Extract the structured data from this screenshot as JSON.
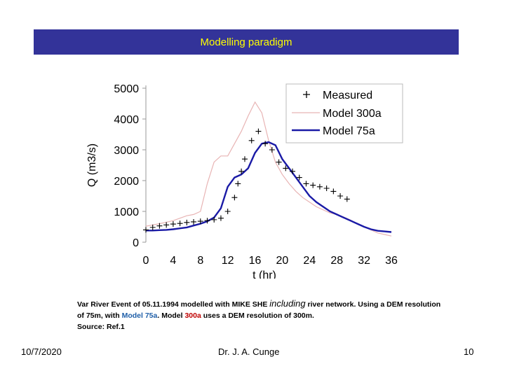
{
  "slide": {
    "title": "Modelling paradigm",
    "caption": {
      "part1": "Var River Event of 05.11.1994 modelled with MIKE SHE ",
      "emphasis": "including",
      "part2": " river network.  Using a DEM resolution of 75m, with ",
      "model_a": "Model 75a",
      "part3": ". Model ",
      "model_b": "300a",
      "part4": " uses a DEM resolution of 300m.",
      "source": "Source: Ref.1"
    },
    "footer": {
      "date": "10/7/2020",
      "author": "Dr. J. A. Cunge",
      "page": "10"
    }
  },
  "colors": {
    "title_bg": "#333399",
    "title_text": "#ffff00",
    "model_a": "#1f5fa8",
    "model_b": "#c00000"
  },
  "chart_data": {
    "type": "line",
    "title": "",
    "xlabel": "t (hr)",
    "ylabel": "Q (m3/s)",
    "xlim": [
      0,
      36
    ],
    "ylim": [
      0,
      5000
    ],
    "xticks": [
      0,
      4,
      8,
      12,
      16,
      20,
      24,
      28,
      32,
      36
    ],
    "yticks": [
      0,
      1000,
      2000,
      3000,
      4000,
      5000
    ],
    "legend_position": "top-right",
    "series": [
      {
        "name": "Measured",
        "style": "markers",
        "color": "#000000",
        "x": [
          0,
          1,
          2,
          3,
          4,
          5,
          6,
          7,
          8,
          9,
          10,
          11,
          12,
          13,
          13.5,
          14,
          14.5,
          15.5,
          16.5,
          17.5,
          18.5,
          19.5,
          20.5,
          21.5,
          22.5,
          23.5,
          24.5,
          25.5,
          26.5,
          27.5,
          28.5,
          29.5
        ],
        "y": [
          400,
          480,
          530,
          560,
          590,
          610,
          640,
          660,
          680,
          700,
          730,
          780,
          1000,
          1450,
          1900,
          2300,
          2700,
          3300,
          3600,
          3200,
          3000,
          2600,
          2400,
          2300,
          2100,
          1900,
          1850,
          1800,
          1750,
          1650,
          1500,
          1400
        ]
      },
      {
        "name": "Model 300a",
        "style": "line",
        "color": "#e8b4b4",
        "x": [
          0,
          1,
          2,
          3,
          4,
          5,
          6,
          7,
          8,
          9,
          10,
          11,
          12,
          13,
          14,
          15,
          16,
          17,
          18,
          19,
          20,
          21,
          22,
          23,
          24,
          25,
          26,
          27,
          28,
          29,
          30,
          31,
          32,
          33,
          34,
          35,
          36
        ],
        "y": [
          520,
          560,
          600,
          650,
          700,
          780,
          860,
          900,
          1000,
          1900,
          2600,
          2800,
          2800,
          3200,
          3600,
          4100,
          4550,
          4200,
          3300,
          2600,
          2200,
          1900,
          1650,
          1450,
          1300,
          1150,
          1050,
          950,
          900,
          820,
          720,
          600,
          500,
          400,
          300,
          250,
          200
        ]
      },
      {
        "name": "Model 75a",
        "style": "line",
        "color": "#1a1aa6",
        "x": [
          0,
          1,
          2,
          3,
          4,
          5,
          6,
          7,
          8,
          9,
          10,
          11,
          12,
          13,
          14,
          15,
          16,
          17,
          18,
          19,
          20,
          21,
          22,
          23,
          24,
          25,
          26,
          27,
          28,
          29,
          30,
          31,
          32,
          33,
          34,
          35,
          36
        ],
        "y": [
          380,
          380,
          390,
          400,
          420,
          450,
          480,
          540,
          600,
          680,
          800,
          1100,
          1800,
          2100,
          2200,
          2400,
          2900,
          3200,
          3250,
          3150,
          2700,
          2400,
          2100,
          1800,
          1500,
          1300,
          1150,
          1000,
          900,
          800,
          700,
          600,
          500,
          420,
          370,
          350,
          330
        ]
      }
    ]
  }
}
